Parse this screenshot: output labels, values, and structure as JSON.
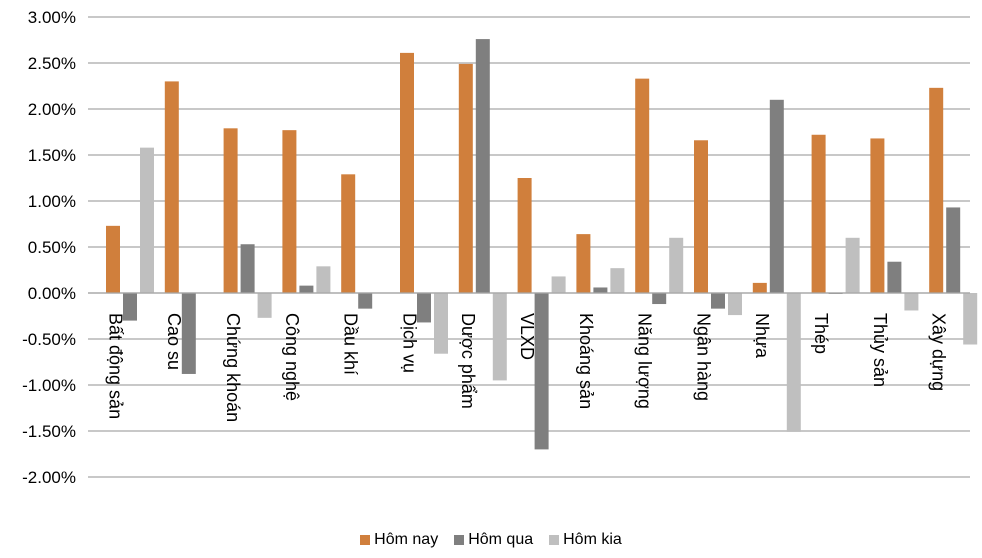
{
  "chart_data": {
    "type": "bar",
    "title": "",
    "xlabel": "",
    "ylabel": "",
    "ylim": [
      -2.0,
      3.0
    ],
    "y_ticks": [
      "3.00%",
      "2.50%",
      "2.00%",
      "1.50%",
      "1.00%",
      "0.50%",
      "0.00%",
      "-0.50%",
      "-1.00%",
      "-1.50%",
      "-2.00%"
    ],
    "grid": true,
    "legend_position": "bottom",
    "categories": [
      "Bất động sản",
      "Cao su",
      "Chứng khoán",
      "Công nghệ",
      "Dầu khí",
      "Dịch vụ",
      "Dược phẩm",
      "VLXD",
      "Khoáng sản",
      "Năng lượng",
      "Ngân hàng",
      "Nhựa",
      "Thép",
      "Thủy sản",
      "Xây dựng"
    ],
    "series": [
      {
        "name": "Hôm nay",
        "color": "#D07F3C",
        "values": [
          0.73,
          2.3,
          1.79,
          1.77,
          1.29,
          2.61,
          2.49,
          1.25,
          0.64,
          2.33,
          1.66,
          0.11,
          1.72,
          1.68,
          2.23
        ]
      },
      {
        "name": "Hôm qua",
        "color": "#7F7F7F",
        "values": [
          -0.3,
          -0.88,
          0.53,
          0.08,
          -0.17,
          -0.32,
          2.76,
          -1.7,
          0.06,
          -0.12,
          -0.17,
          2.1,
          -0.01,
          0.34,
          0.93
        ]
      },
      {
        "name": "Hôm kia",
        "color": "#BFBFBF",
        "values": [
          1.58,
          0.0,
          -0.27,
          0.29,
          0.0,
          -0.66,
          -0.95,
          0.18,
          0.27,
          0.6,
          -0.24,
          -1.51,
          0.6,
          -0.19,
          -0.56
        ]
      }
    ]
  }
}
